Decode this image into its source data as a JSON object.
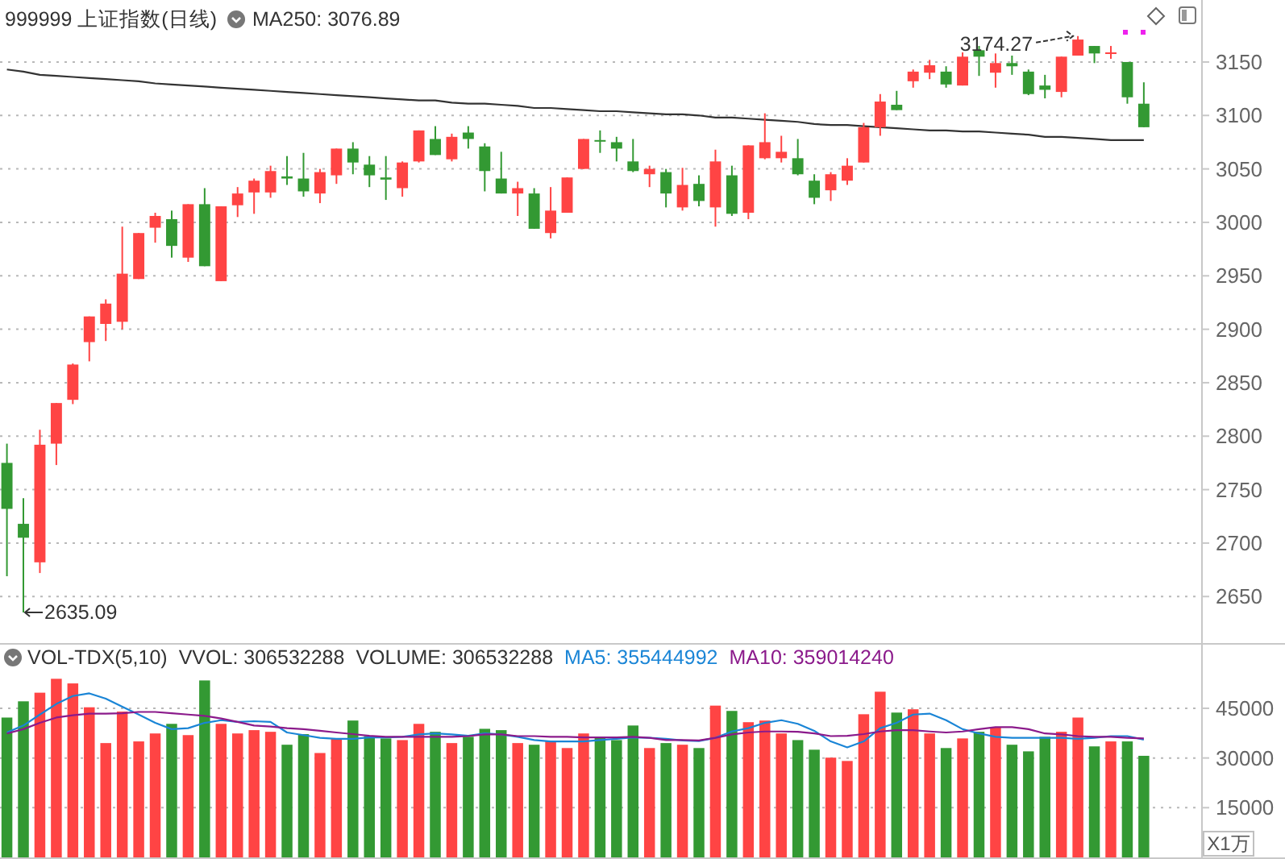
{
  "chart_data": [
    {
      "type": "candlestick",
      "title": "999999 上证指数(日线)",
      "categories": [
        null,
        null,
        null,
        null,
        null,
        null,
        null,
        null,
        null,
        null,
        null,
        null,
        null,
        null,
        null,
        null,
        null,
        null,
        null,
        null,
        null,
        null,
        null,
        null,
        null,
        null,
        null,
        null,
        null,
        null,
        null,
        null,
        null,
        null,
        null,
        null,
        null,
        null,
        null,
        null,
        null,
        null,
        null,
        null,
        null,
        null,
        null,
        null,
        null,
        null,
        null,
        null,
        null,
        null,
        null,
        null,
        null,
        null,
        null,
        null,
        null,
        null,
        null,
        null,
        null,
        null,
        null,
        null,
        null,
        null
      ],
      "ohlc": [
        [
          2775,
          2793,
          2669,
          2732
        ],
        [
          2718,
          2742,
          2635.09,
          2705
        ],
        [
          2682,
          2806,
          2672,
          2792
        ],
        [
          2793,
          2831,
          2773,
          2831
        ],
        [
          2834,
          2868,
          2830,
          2867
        ],
        [
          2888,
          2912,
          2870,
          2912
        ],
        [
          2905,
          2928,
          2889,
          2924
        ],
        [
          2907,
          2996,
          2900,
          2952
        ],
        [
          2947,
          2990,
          2947,
          2990
        ],
        [
          2995,
          3009,
          2981,
          3006
        ],
        [
          3003,
          3011,
          2967,
          2978
        ],
        [
          2967,
          3017,
          2963,
          3017
        ],
        [
          3017,
          3032,
          2959,
          2959
        ],
        [
          2945,
          3015,
          2945,
          3015
        ],
        [
          3016,
          3033,
          3005,
          3027
        ],
        [
          3028,
          3041,
          3008,
          3039
        ],
        [
          3028,
          3053,
          3023,
          3048
        ],
        [
          3043,
          3062,
          3035,
          3041
        ],
        [
          3041,
          3065,
          3024,
          3029
        ],
        [
          3027,
          3050,
          3018,
          3047
        ],
        [
          3044,
          3069,
          3036,
          3069
        ],
        [
          3069,
          3075,
          3045,
          3056
        ],
        [
          3054,
          3062,
          3033,
          3044
        ],
        [
          3042,
          3062,
          3021,
          3040
        ],
        [
          3032,
          3057,
          3024,
          3056
        ],
        [
          3057,
          3086,
          3056,
          3086
        ],
        [
          3078,
          3090,
          3063,
          3063
        ],
        [
          3059,
          3083,
          3057,
          3080
        ],
        [
          3084,
          3090,
          3069,
          3078
        ],
        [
          3071,
          3074,
          3029,
          3048
        ],
        [
          3041,
          3066,
          3027,
          3027
        ],
        [
          3027,
          3038,
          3006,
          3032
        ],
        [
          3027,
          3032,
          2994,
          2994
        ],
        [
          2990,
          3033,
          2985,
          3011
        ],
        [
          3009,
          3042,
          3009,
          3042
        ],
        [
          3050,
          3078,
          3050,
          3078
        ],
        [
          3077,
          3086,
          3065,
          3076
        ],
        [
          3075,
          3080,
          3057,
          3069
        ],
        [
          3057,
          3078,
          3047,
          3048
        ],
        [
          3045,
          3053,
          3033,
          3050
        ],
        [
          3047,
          3050,
          3014,
          3027
        ],
        [
          3014,
          3051,
          3011,
          3035
        ],
        [
          3036,
          3044,
          3015,
          3020
        ],
        [
          3014,
          3068,
          2996,
          3057
        ],
        [
          3044,
          3053,
          3006,
          3008
        ],
        [
          3009,
          3072,
          3003,
          3072
        ],
        [
          3060,
          3102,
          3059,
          3075
        ],
        [
          3060,
          3081,
          3056,
          3066
        ],
        [
          3060,
          3078,
          3044,
          3045
        ],
        [
          3039,
          3045,
          3017,
          3023
        ],
        [
          3030,
          3047,
          3020,
          3045
        ],
        [
          3039,
          3060,
          3035,
          3053
        ],
        [
          3056,
          3093,
          3056,
          3089
        ],
        [
          3089,
          3120,
          3081,
          3113
        ],
        [
          3110,
          3123,
          3105,
          3105
        ],
        [
          3132,
          3143,
          3126,
          3141
        ],
        [
          3140,
          3152,
          3134,
          3147
        ],
        [
          3141,
          3146,
          3126,
          3129
        ],
        [
          3128,
          3159,
          3128,
          3155
        ],
        [
          3161,
          3165,
          3137,
          3155
        ],
        [
          3140,
          3158,
          3126,
          3149
        ],
        [
          3149,
          3156,
          3138,
          3146
        ],
        [
          3141,
          3143,
          3119,
          3120
        ],
        [
          3128,
          3138,
          3116,
          3124
        ],
        [
          3122,
          3155,
          3117,
          3155
        ],
        [
          3156,
          3174.27,
          3156,
          3171
        ],
        [
          3165,
          3165,
          3149,
          3158
        ],
        [
          3158,
          3165,
          3153,
          3159
        ],
        [
          3150,
          3150,
          3111,
          3117
        ],
        [
          3111,
          3131,
          3089,
          3089
        ]
      ],
      "colors": [
        "#339933",
        "#339933",
        "#ff4444",
        "#ff4444",
        "#ff4444",
        "#ff4444",
        "#ff4444",
        "#ff4444",
        "#ff4444",
        "#ff4444",
        "#339933",
        "#ff4444",
        "#339933",
        "#ff4444",
        "#ff4444",
        "#ff4444",
        "#ff4444",
        "#339933",
        "#339933",
        "#ff4444",
        "#ff4444",
        "#339933",
        "#339933",
        "#339933",
        "#ff4444",
        "#ff4444",
        "#339933",
        "#ff4444",
        "#339933",
        "#339933",
        "#339933",
        "#ff4444",
        "#339933",
        "#ff4444",
        "#ff4444",
        "#ff4444",
        "#339933",
        "#339933",
        "#339933",
        "#ff4444",
        "#339933",
        "#ff4444",
        "#339933",
        "#ff4444",
        "#339933",
        "#ff4444",
        "#ff4444",
        "#ff4444",
        "#339933",
        "#339933",
        "#ff4444",
        "#ff4444",
        "#ff4444",
        "#ff4444",
        "#339933",
        "#ff4444",
        "#ff4444",
        "#339933",
        "#ff4444",
        "#339933",
        "#ff4444",
        "#339933",
        "#339933",
        "#339933",
        "#ff4444",
        "#ff4444",
        "#339933",
        "#ff4444",
        "#339933",
        "#339933"
      ],
      "series": [
        {
          "type": "line",
          "color": "#333333",
          "values": [
            3143,
            3141,
            3138,
            3137,
            3136,
            3135,
            3134,
            3133,
            3132,
            3130,
            3129,
            3128,
            3127,
            3126,
            3125,
            3124,
            3123,
            3122,
            3121,
            3120,
            3119,
            3118,
            3117,
            3116,
            3115,
            3114,
            3114,
            3112,
            3111,
            3111,
            3110,
            3109,
            3107,
            3107,
            3106,
            3105,
            3104,
            3104,
            3103,
            3102,
            3101,
            3101,
            3100,
            3098,
            3098,
            3097,
            3096,
            3095,
            3094,
            3092,
            3091,
            3091,
            3090,
            3089,
            3088,
            3087,
            3086,
            3086,
            3085,
            3085,
            3084,
            3083,
            3082,
            3080,
            3080,
            3079,
            3078,
            3077,
            3077,
            3076.89
          ]
        }
      ],
      "annotations": [
        "MA250: 3076.89",
        "2635.09",
        "3174.27"
      ],
      "ylim": [
        2608,
        3208
      ],
      "yticks": [
        2650,
        2700,
        2750,
        2800,
        2850,
        2900,
        2950,
        3000,
        3050,
        3100,
        3150
      ],
      "grid": "y",
      "tick_labels": "y"
    },
    {
      "type": "bar",
      "title": "VOL-TDX(5,10)",
      "categories": [
        null,
        null,
        null,
        null,
        null,
        null,
        null,
        null,
        null,
        null,
        null,
        null,
        null,
        null,
        null,
        null,
        null,
        null,
        null,
        null,
        null,
        null,
        null,
        null,
        null,
        null,
        null,
        null,
        null,
        null,
        null,
        null,
        null,
        null,
        null,
        null,
        null,
        null,
        null,
        null,
        null,
        null,
        null,
        null,
        null,
        null,
        null,
        null,
        null,
        null,
        null,
        null,
        null,
        null,
        null,
        null,
        null,
        null,
        null,
        null,
        null,
        null,
        null,
        null,
        null,
        null,
        null,
        null,
        null,
        null
      ],
      "values": [
        42200,
        47100,
        49700,
        53900,
        52500,
        45300,
        34500,
        44000,
        35000,
        37400,
        40300,
        36900,
        53400,
        40300,
        37400,
        38400,
        37900,
        34000,
        37200,
        31500,
        35900,
        41300,
        36600,
        35900,
        35400,
        40300,
        37900,
        34500,
        36400,
        38800,
        38400,
        34500,
        34000,
        35000,
        33000,
        37400,
        36400,
        35400,
        39800,
        33000,
        34500,
        34000,
        33000,
        45800,
        44200,
        40800,
        41300,
        37400,
        35400,
        32500,
        30100,
        29100,
        43200,
        50000,
        43700,
        44700,
        37400,
        33000,
        35900,
        37900,
        39300,
        34000,
        32000,
        36400,
        37900,
        42200,
        33500,
        35000,
        35000,
        30653
      ],
      "colors": [
        "#339933",
        "#339933",
        "#ff4444",
        "#ff4444",
        "#ff4444",
        "#ff4444",
        "#ff4444",
        "#ff4444",
        "#ff4444",
        "#ff4444",
        "#339933",
        "#ff4444",
        "#339933",
        "#ff4444",
        "#ff4444",
        "#ff4444",
        "#ff4444",
        "#339933",
        "#339933",
        "#ff4444",
        "#ff4444",
        "#339933",
        "#339933",
        "#339933",
        "#ff4444",
        "#ff4444",
        "#339933",
        "#ff4444",
        "#339933",
        "#339933",
        "#339933",
        "#ff4444",
        "#339933",
        "#ff4444",
        "#ff4444",
        "#ff4444",
        "#339933",
        "#339933",
        "#339933",
        "#ff4444",
        "#339933",
        "#ff4444",
        "#339933",
        "#ff4444",
        "#339933",
        "#ff4444",
        "#ff4444",
        "#ff4444",
        "#339933",
        "#339933",
        "#ff4444",
        "#ff4444",
        "#ff4444",
        "#ff4444",
        "#339933",
        "#ff4444",
        "#ff4444",
        "#339933",
        "#ff4444",
        "#339933",
        "#ff4444",
        "#339933",
        "#339933",
        "#339933",
        "#ff4444",
        "#ff4444",
        "#339933",
        "#ff4444",
        "#339933",
        "#339933"
      ],
      "series": [
        {
          "type": "line",
          "color": "#1a85d6",
          "values": [
            37700,
            39800,
            43100,
            46300,
            48700,
            49500,
            47900,
            45500,
            43100,
            40600,
            38700,
            39000,
            40600,
            41400,
            40900,
            41100,
            40900,
            37700,
            36900,
            36100,
            35800,
            35800,
            36200,
            36200,
            36400,
            37100,
            37400,
            37100,
            36700,
            37400,
            37100,
            36400,
            35400,
            35000,
            35000,
            35000,
            35400,
            35800,
            36200,
            36100,
            35800,
            35300,
            35100,
            36100,
            38000,
            39000,
            40600,
            41400,
            40300,
            38200,
            35000,
            33200,
            35000,
            39000,
            40600,
            43100,
            43400,
            41400,
            38700,
            37400,
            36400,
            36100,
            36100,
            36100,
            36100,
            35800,
            36100,
            36600,
            36600,
            35544
          ]
        },
        {
          "type": "line",
          "color": "#8b1a8b",
          "values": [
            37400,
            38700,
            40600,
            42200,
            42900,
            43400,
            43400,
            43500,
            43900,
            43900,
            43500,
            43100,
            42700,
            41900,
            40900,
            39800,
            39500,
            39000,
            38700,
            38200,
            37700,
            37200,
            36700,
            36400,
            36400,
            36400,
            36400,
            36400,
            36600,
            37100,
            37100,
            36600,
            36600,
            36400,
            36400,
            36200,
            36200,
            36200,
            36400,
            36100,
            35400,
            35400,
            35300,
            36100,
            37100,
            37700,
            38000,
            38000,
            37900,
            37400,
            36600,
            36700,
            37200,
            38000,
            38400,
            38400,
            38000,
            37700,
            38000,
            38700,
            39300,
            39300,
            38700,
            37400,
            37100,
            36600,
            36400,
            36400,
            36100,
            35901
          ]
        }
      ],
      "annotations": [
        "VVOL: 306532288",
        "VOLUME: 306532288",
        "MA5: 355444992",
        "MA10: 359014240"
      ],
      "ylabel": "X1万",
      "ylim": [
        0,
        64200
      ],
      "yticks": [
        15000,
        30000,
        45000
      ],
      "grid": "y",
      "tick_labels": "y"
    }
  ]
}
